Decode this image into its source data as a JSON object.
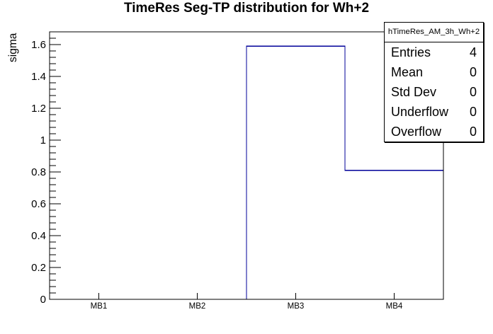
{
  "title": "TimeRes Seg-TP distribution for Wh+2",
  "stats": {
    "header": "hTimeRes_AM_3h_Wh+2",
    "rows": [
      {
        "label": "Entries",
        "value": "4"
      },
      {
        "label": "Mean",
        "value": "0"
      },
      {
        "label": "Std Dev",
        "value": "0"
      },
      {
        "label": "Underflow",
        "value": "0"
      },
      {
        "label": "Overflow",
        "value": "0"
      }
    ]
  },
  "chart_data": {
    "type": "bar",
    "style": "root-step-histogram",
    "title": "TimeRes Seg-TP distribution for Wh+2",
    "categories": [
      "MB1",
      "MB2",
      "MB3",
      "MB4"
    ],
    "values": [
      0,
      0,
      1.59,
      0.81
    ],
    "xlabel": "",
    "ylabel": "sigma",
    "ylim": [
      0,
      1.68
    ],
    "y_major_ticks": [
      0,
      0.2,
      0.4,
      0.6,
      0.8,
      1,
      1.2,
      1.4,
      1.6
    ],
    "y_tick_labels": [
      "0",
      "0.2",
      "0.4",
      "0.6",
      "0.8",
      "1",
      "1.2",
      "1.4",
      "1.6"
    ],
    "y_major_step": 0.2,
    "y_minor_step": 0.04,
    "grid": false,
    "legend": "none",
    "line_color": "#000099",
    "frame_color": "#000000",
    "background_color": "#ffffff"
  }
}
